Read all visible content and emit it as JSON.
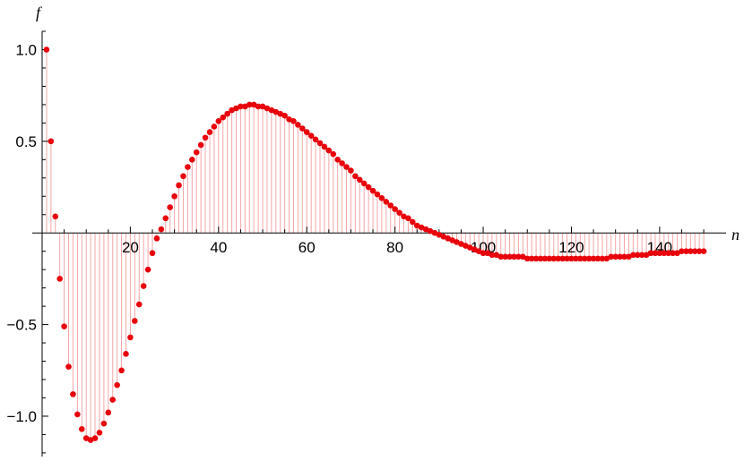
{
  "chart_data": {
    "type": "scatter",
    "style": "discrete-stem",
    "xlabel": "n",
    "ylabel": "f",
    "xlim": [
      0,
      151
    ],
    "ylim": [
      -1.22,
      1.1
    ],
    "xticks": {
      "major": [
        20,
        40,
        60,
        80,
        100,
        120,
        140
      ],
      "minor_step": 5
    },
    "yticks": {
      "major": [
        -1.0,
        -0.5,
        0.5,
        1.0
      ],
      "major_labels": [
        "−1.0",
        "−0.5",
        "0.5",
        "1.0"
      ],
      "minor_step": 0.1
    },
    "grid": false,
    "colors": {
      "point": "#e8000b",
      "stem": "#f4a6a6",
      "axis": "#000000"
    },
    "series": [
      {
        "x": [
          1,
          2,
          3,
          4,
          5,
          6,
          7,
          8,
          9,
          10,
          11,
          12,
          13,
          14,
          15,
          16,
          17,
          18,
          19,
          20,
          21,
          22,
          23,
          24,
          25,
          26,
          27,
          28,
          29,
          30,
          31,
          32,
          33,
          34,
          35,
          36,
          37,
          38,
          39,
          40,
          41,
          42,
          43,
          44,
          45,
          46,
          47,
          48,
          49,
          50,
          51,
          52,
          53,
          54,
          55,
          56,
          57,
          58,
          59,
          60,
          61,
          62,
          63,
          64,
          65,
          66,
          67,
          68,
          69,
          70,
          71,
          72,
          73,
          74,
          75,
          76,
          77,
          78,
          79,
          80,
          81,
          82,
          83,
          84,
          85,
          86,
          87,
          88,
          89,
          90,
          91,
          92,
          93,
          94,
          95,
          96,
          97,
          98,
          99,
          100,
          101,
          102,
          103,
          104,
          105,
          106,
          107,
          108,
          109,
          110,
          111,
          112,
          113,
          114,
          115,
          116,
          117,
          118,
          119,
          120,
          121,
          122,
          123,
          124,
          125,
          126,
          127,
          128,
          129,
          130,
          131,
          132,
          133,
          134,
          135,
          136,
          137,
          138,
          139,
          140,
          141,
          142,
          143,
          144,
          145,
          146,
          147,
          148,
          149,
          150
        ],
        "y": [
          1.0,
          0.5,
          0.09,
          -0.25,
          -0.51,
          -0.73,
          -0.88,
          -0.99,
          -1.07,
          -1.12,
          -1.13,
          -1.12,
          -1.09,
          -1.04,
          -0.98,
          -0.91,
          -0.83,
          -0.75,
          -0.66,
          -0.57,
          -0.48,
          -0.39,
          -0.29,
          -0.2,
          -0.11,
          -0.03,
          0.02,
          0.08,
          0.14,
          0.2,
          0.26,
          0.31,
          0.36,
          0.4,
          0.44,
          0.48,
          0.52,
          0.55,
          0.58,
          0.61,
          0.63,
          0.65,
          0.67,
          0.68,
          0.69,
          0.69,
          0.7,
          0.7,
          0.69,
          0.69,
          0.68,
          0.67,
          0.66,
          0.65,
          0.64,
          0.62,
          0.61,
          0.59,
          0.57,
          0.55,
          0.53,
          0.51,
          0.49,
          0.47,
          0.45,
          0.43,
          0.4,
          0.38,
          0.36,
          0.34,
          0.31,
          0.29,
          0.27,
          0.25,
          0.23,
          0.21,
          0.19,
          0.17,
          0.15,
          0.13,
          0.11,
          0.09,
          0.08,
          0.06,
          0.04,
          0.03,
          0.02,
          0.01,
          0.0,
          -0.01,
          -0.02,
          -0.03,
          -0.04,
          -0.05,
          -0.06,
          -0.07,
          -0.08,
          -0.09,
          -0.1,
          -0.11,
          -0.11,
          -0.12,
          -0.12,
          -0.13,
          -0.13,
          -0.13,
          -0.13,
          -0.13,
          -0.13,
          -0.14,
          -0.14,
          -0.14,
          -0.14,
          -0.14,
          -0.14,
          -0.14,
          -0.14,
          -0.14,
          -0.14,
          -0.14,
          -0.14,
          -0.14,
          -0.14,
          -0.14,
          -0.14,
          -0.14,
          -0.14,
          -0.14,
          -0.13,
          -0.13,
          -0.13,
          -0.13,
          -0.13,
          -0.12,
          -0.12,
          -0.12,
          -0.12,
          -0.11,
          -0.11,
          -0.11,
          -0.11,
          -0.11,
          -0.11,
          -0.11,
          -0.1,
          -0.1,
          -0.1,
          -0.1,
          -0.1,
          -0.1
        ]
      }
    ]
  }
}
